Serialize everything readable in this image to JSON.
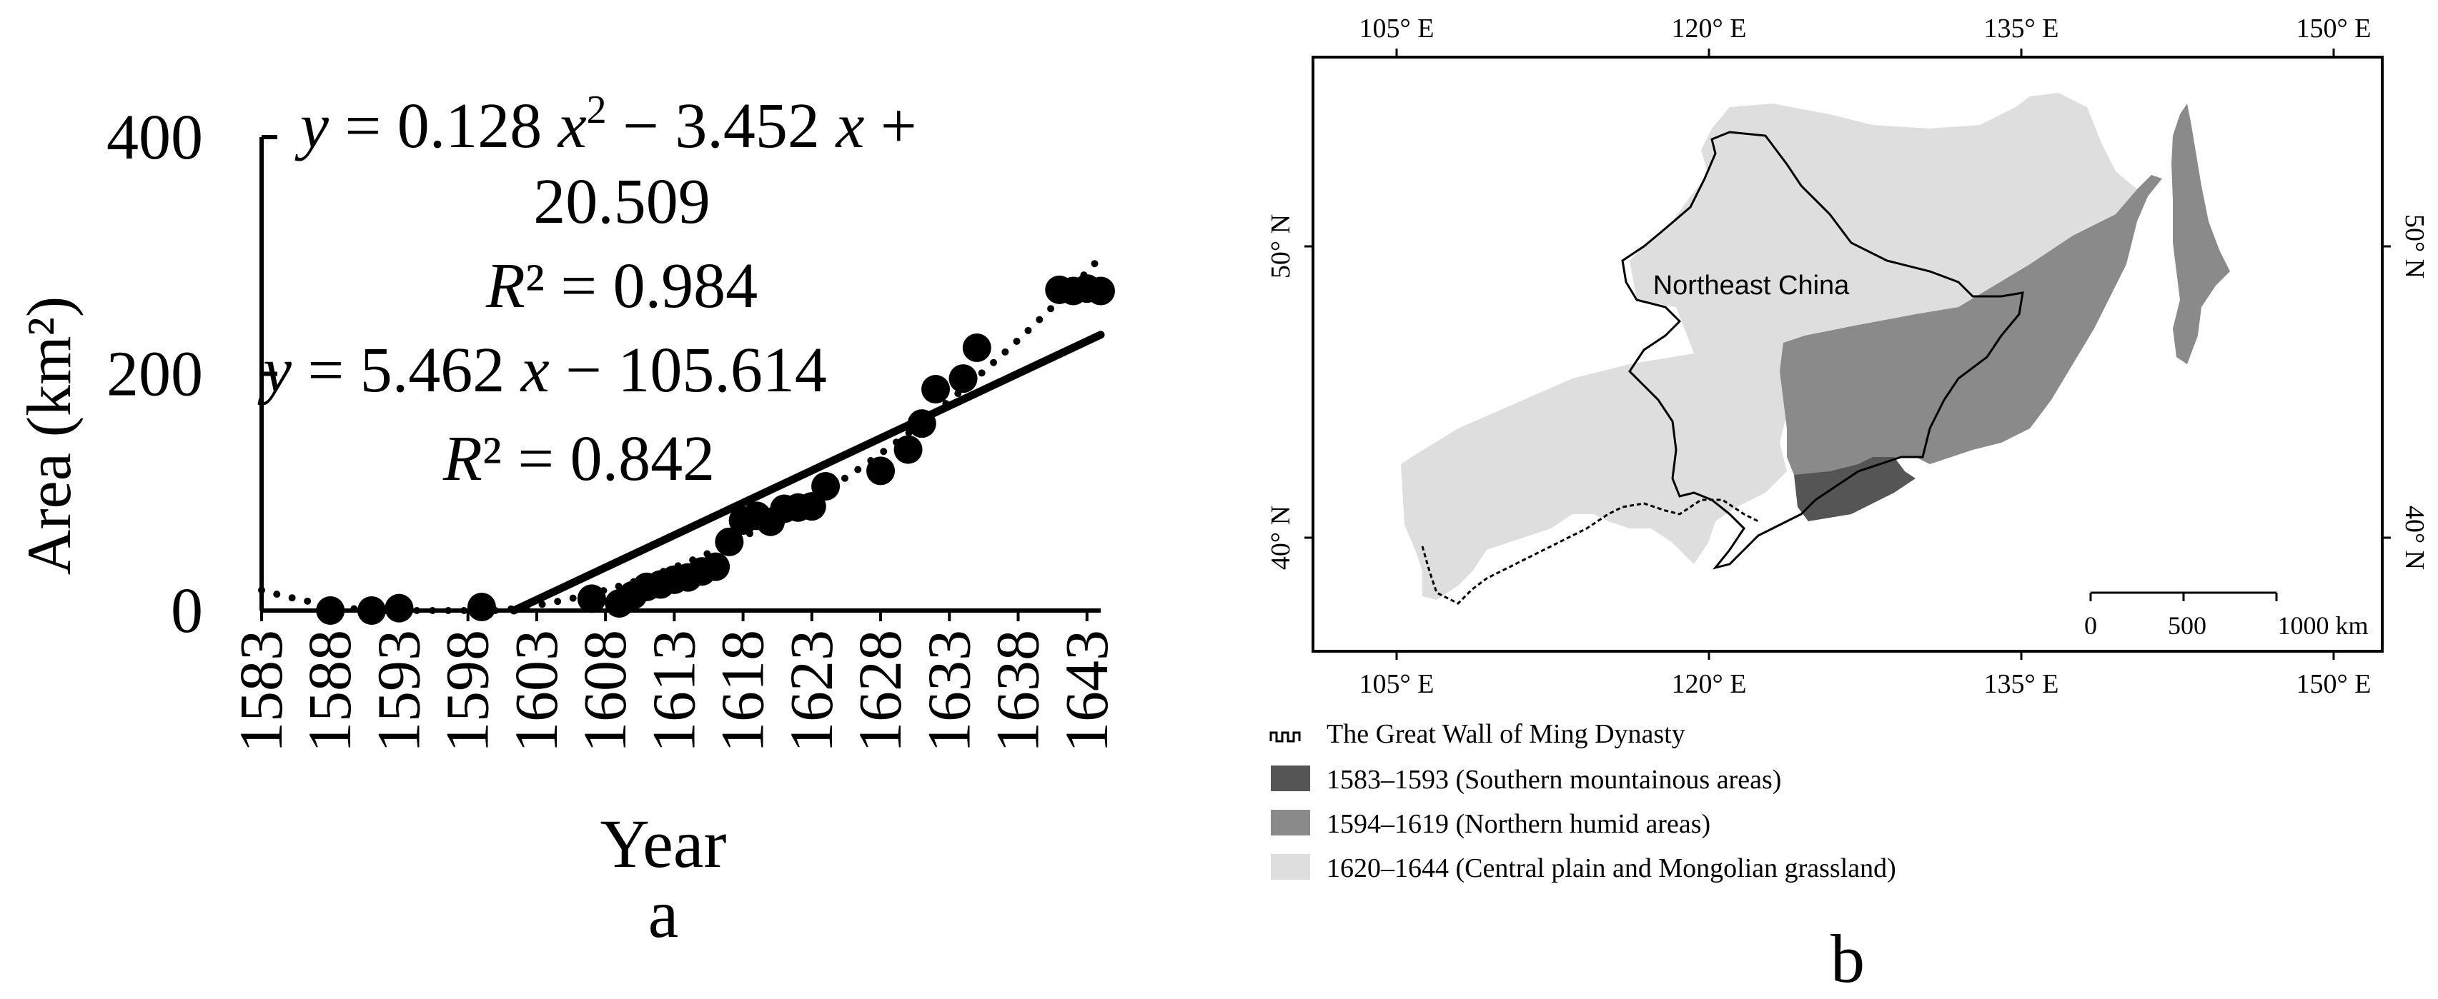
{
  "panel_a": {
    "caption": "a",
    "equation_quad_line1_y": "y",
    "equation_quad_line1_rest": " = 0.128 ",
    "equation_quad_x": "x",
    "equation_quad_sup": "2",
    "equation_quad_mid": " − 3.452 ",
    "equation_quad_x2": "x",
    "equation_quad_end": " +",
    "equation_quad_line2": "20.509",
    "r2_quad_r": "R",
    "r2_quad_rest": "² = 0.984",
    "equation_lin_y": "y",
    "equation_lin_mid": " = 5.462 ",
    "equation_lin_x": "x",
    "equation_lin_end": " − 105.614",
    "r2_lin_r": "R",
    "r2_lin_rest": "² = 0.842"
  },
  "panel_b": {
    "caption": "b",
    "region_label": "Northeast China",
    "top_lon_ticks": [
      "105° E",
      "120° E",
      "135° E",
      "150° E"
    ],
    "bottom_lon_ticks": [
      "105° E",
      "120° E",
      "135° E",
      "150° E"
    ],
    "left_lat_ticks": [
      "50° N",
      "40° N"
    ],
    "right_lat_ticks": [
      "50° N",
      "40° N"
    ],
    "scale_labels": [
      "0",
      "500",
      "1000 km"
    ],
    "legend": [
      {
        "label": "The Great Wall of Ming Dynasty",
        "kind": "wall"
      },
      {
        "label": "1583–1593 (Southern mountainous areas)",
        "color": "#555555"
      },
      {
        "label": "1594–1619 (Northern humid areas)",
        "color": "#8a8a8a"
      },
      {
        "label": "1620–1644 (Central plain and Mongolian grassland)",
        "color": "#dedede"
      }
    ]
  },
  "chart_data": {
    "type": "scatter",
    "xlabel": "Year",
    "ylabel": "Area (km²)",
    "x_ticks": [
      1583,
      1588,
      1593,
      1598,
      1603,
      1608,
      1613,
      1618,
      1623,
      1628,
      1633,
      1638,
      1643
    ],
    "y_ticks": [
      0,
      200,
      400
    ],
    "xlim": [
      1583,
      1644
    ],
    "ylim": [
      0,
      400
    ],
    "series": [
      {
        "points": [
          [
            1588,
            0
          ],
          [
            1591,
            0
          ],
          [
            1593,
            2
          ],
          [
            1599,
            3
          ],
          [
            1607,
            10
          ],
          [
            1609,
            6
          ],
          [
            1610,
            13
          ],
          [
            1611,
            20
          ],
          [
            1612,
            22
          ],
          [
            1613,
            26
          ],
          [
            1614,
            28
          ],
          [
            1615,
            33
          ],
          [
            1616,
            37
          ],
          [
            1617,
            58
          ],
          [
            1618,
            76
          ],
          [
            1619,
            80
          ],
          [
            1620,
            75
          ],
          [
            1621,
            86
          ],
          [
            1622,
            87
          ],
          [
            1623,
            88
          ],
          [
            1624,
            105
          ],
          [
            1628,
            118
          ],
          [
            1630,
            136
          ],
          [
            1631,
            158
          ],
          [
            1632,
            187
          ],
          [
            1634,
            196
          ],
          [
            1635,
            222
          ],
          [
            1641,
            271
          ],
          [
            1642,
            270
          ],
          [
            1643,
            272
          ],
          [
            1644,
            270
          ]
        ]
      }
    ],
    "trend_quadratic": {
      "a": 0.128,
      "b": -3.452,
      "c": 20.509,
      "r2": 0.984,
      "style": "dotted"
    },
    "trend_linear": {
      "slope": 5.462,
      "intercept": -105.614,
      "r2": 0.842,
      "style": "solid"
    }
  }
}
